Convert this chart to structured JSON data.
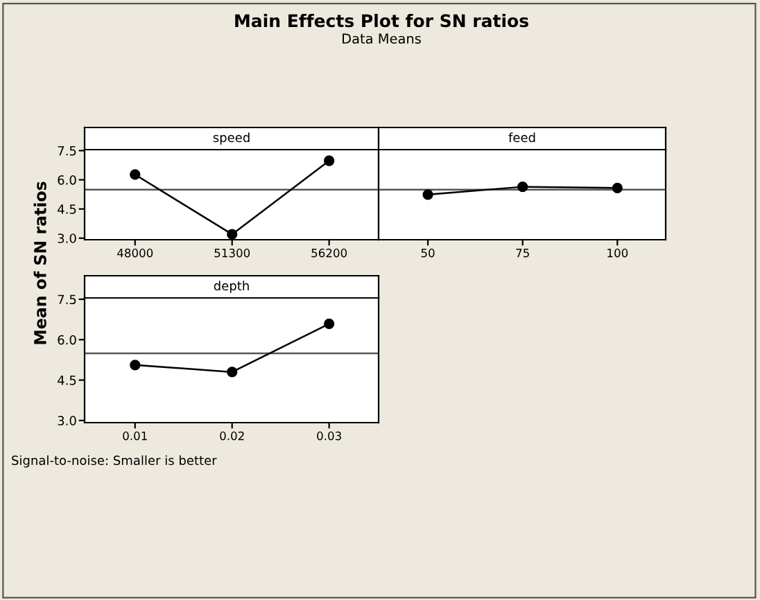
{
  "chart_data": [
    {
      "type": "other",
      "title": "Main Effects Plot for SN ratios",
      "subtitle": "Data Means",
      "ylabel": "Mean of SN ratios",
      "annotations": [
        "Signal-to-noise: Smaller is better"
      ]
    },
    {
      "type": "line",
      "title": "speed",
      "categories": [
        "48000",
        "51300",
        "56200"
      ],
      "series": [
        {
          "color": "#000000",
          "values": [
            6.27,
            3.2,
            6.98
          ]
        }
      ],
      "ylim": [
        2.92,
        7.55
      ],
      "yticks": [
        {
          "value": 3.0,
          "label": "3.0"
        },
        {
          "value": 4.5,
          "label": "4.5"
        },
        {
          "value": 6.0,
          "label": "6.0"
        },
        {
          "value": 7.5,
          "label": "7.5"
        }
      ],
      "ref_lines": [
        {
          "axis": "y",
          "value": 5.49,
          "color": "#555555"
        }
      ],
      "marker": "circle",
      "line_style": "solid",
      "grid": false
    },
    {
      "type": "line",
      "title": "feed",
      "categories": [
        "50",
        "75",
        "100"
      ],
      "series": [
        {
          "color": "#000000",
          "values": [
            5.24,
            5.64,
            5.58
          ]
        }
      ],
      "ylim": [
        2.92,
        7.55
      ],
      "ref_lines": [
        {
          "axis": "y",
          "value": 5.49,
          "color": "#555555"
        }
      ],
      "marker": "circle",
      "line_style": "solid",
      "grid": false,
      "tick_labels": "x"
    },
    {
      "type": "line",
      "title": "depth",
      "categories": [
        "0.01",
        "0.02",
        "0.03"
      ],
      "series": [
        {
          "color": "#000000",
          "values": [
            5.06,
            4.8,
            6.59
          ]
        }
      ],
      "ylim": [
        2.92,
        7.55
      ],
      "yticks": [
        {
          "value": 3.0,
          "label": "3.0"
        },
        {
          "value": 4.5,
          "label": "4.5"
        },
        {
          "value": 6.0,
          "label": "6.0"
        },
        {
          "value": 7.5,
          "label": "7.5"
        }
      ],
      "ref_lines": [
        {
          "axis": "y",
          "value": 5.49,
          "color": "#555555"
        }
      ],
      "marker": "circle",
      "line_style": "solid",
      "grid": false
    }
  ]
}
